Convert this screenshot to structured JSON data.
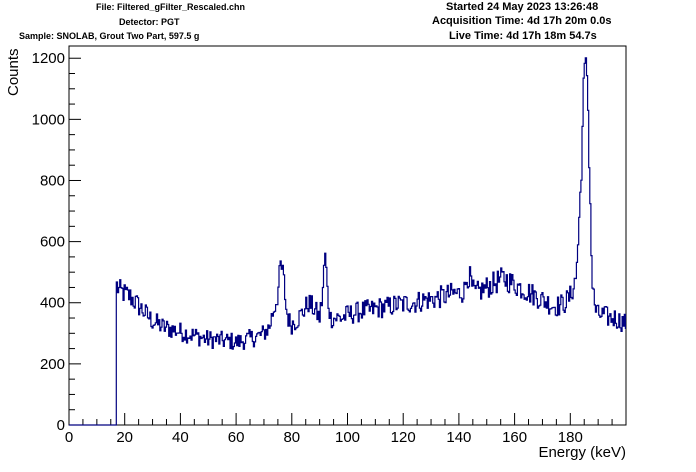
{
  "header": {
    "file": "File: Filtered_gFilter_Rescaled.chn",
    "detector": "Detector: PGT",
    "sample": "Sample: SNOLAB, Grout Two Part, 597.5 g",
    "started": "Started 24 May 2023 13:26:48",
    "acquisition": "Acquisition Time: 4d 17h 20m 0.0s",
    "live": "Live Time: 4d 17h 18m 54.7s"
  },
  "chart_data": {
    "type": "line",
    "xlabel": "Energy (keV)",
    "ylabel": "Counts",
    "xlim": [
      0,
      200
    ],
    "ylim": [
      0,
      1240
    ],
    "x_ticks": [
      "0",
      "20",
      "40",
      "60",
      "80",
      "100",
      "120",
      "140",
      "160",
      "180"
    ],
    "y_ticks": [
      "0",
      "200",
      "400",
      "600",
      "800",
      "1000",
      "1200"
    ],
    "line_color": "#000080",
    "grid": false,
    "series": [
      {
        "x": [
          17,
          18,
          20,
          22,
          24,
          26,
          28,
          30,
          32,
          34,
          36,
          38,
          40,
          42,
          44,
          46,
          48,
          50,
          52,
          54,
          56,
          58,
          60,
          62,
          64,
          66,
          68,
          70,
          72,
          73,
          74,
          75,
          76,
          77,
          78,
          79,
          80,
          82,
          84,
          86,
          88,
          90,
          91,
          92,
          93,
          94,
          96,
          98,
          100,
          102,
          104,
          106,
          108,
          110,
          112,
          114,
          116,
          118,
          120,
          122,
          124,
          126,
          128,
          130,
          132,
          134,
          136,
          138,
          140,
          142,
          143,
          144,
          145,
          146,
          148,
          150,
          152,
          154,
          156,
          158,
          160,
          162,
          164,
          166,
          168,
          170,
          172,
          174,
          176,
          178,
          180,
          182,
          183,
          184,
          185,
          186,
          186.5,
          187,
          187.5,
          188,
          189,
          190,
          192,
          194,
          196,
          198,
          200
        ],
        "y": [
          460,
          440,
          430,
          420,
          400,
          380,
          360,
          340,
          330,
          320,
          315,
          310,
          305,
          300,
          295,
          290,
          285,
          280,
          280,
          278,
          275,
          275,
          270,
          275,
          280,
          285,
          290,
          300,
          320,
          360,
          390,
          430,
          520,
          490,
          380,
          340,
          330,
          345,
          370,
          400,
          380,
          350,
          420,
          560,
          410,
          350,
          350,
          350,
          360,
          365,
          370,
          375,
          375,
          380,
          385,
          385,
          390,
          395,
          395,
          400,
          400,
          405,
          410,
          410,
          415,
          420,
          425,
          430,
          430,
          440,
          490,
          480,
          440,
          430,
          440,
          450,
          460,
          470,
          480,
          470,
          460,
          450,
          440,
          430,
          420,
          410,
          400,
          390,
          390,
          400,
          420,
          480,
          620,
          850,
          1150,
          1160,
          1000,
          800,
          600,
          450,
          380,
          360,
          360,
          350,
          350,
          340,
          335
        ]
      }
    ]
  }
}
